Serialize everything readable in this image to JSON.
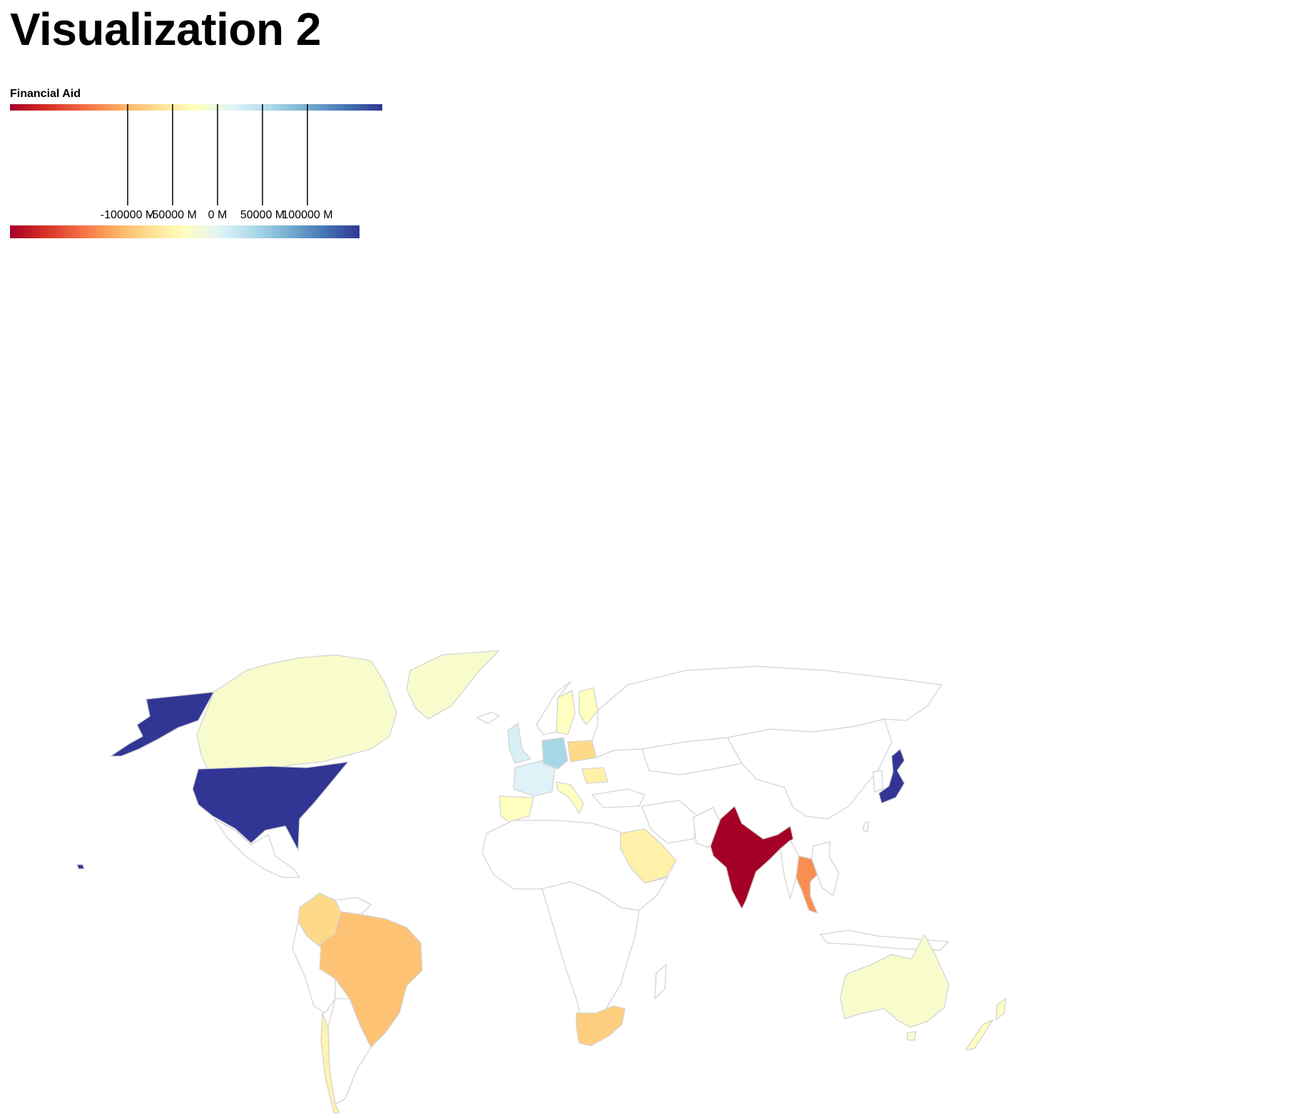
{
  "page": {
    "title": "Visualization 2"
  },
  "legend": {
    "title": "Financial Aid",
    "domain": [
      -130000,
      90000
    ],
    "ticks": [
      {
        "value": -100000,
        "label": "-100000 M"
      },
      {
        "value": -50000,
        "label": "-50000 M"
      },
      {
        "value": 0,
        "label": "0 M"
      },
      {
        "value": 50000,
        "label": "50000 M"
      },
      {
        "value": 100000,
        "label": "100000 M"
      }
    ],
    "gradient_stops": [
      "#a50026",
      "#d73027",
      "#f46d43",
      "#fdae61",
      "#fee090",
      "#ffffbf",
      "#e0f3f8",
      "#abd9e9",
      "#74add1",
      "#4575b4",
      "#313695"
    ]
  },
  "chart_data": {
    "type": "choropleth",
    "title": "",
    "value_label": "Financial Aid",
    "unit": "M",
    "no_data_color": "#ffffff",
    "border_color": "#d4d4d4",
    "regions": [
      {
        "id": "united-states",
        "value": 100000
      },
      {
        "id": "alaska",
        "value": 100000
      },
      {
        "id": "japan",
        "value": 100000
      },
      {
        "id": "germany",
        "value": 25000
      },
      {
        "id": "united-kingdom",
        "value": 5000
      },
      {
        "id": "france",
        "value": 3000
      },
      {
        "id": "canada",
        "value": -15000
      },
      {
        "id": "greenland",
        "value": -15000
      },
      {
        "id": "australia",
        "value": -15000
      },
      {
        "id": "new-zealand",
        "value": -18000
      },
      {
        "id": "sweden",
        "value": -20000
      },
      {
        "id": "finland",
        "value": -20000
      },
      {
        "id": "spain",
        "value": -20000
      },
      {
        "id": "italy",
        "value": -20000
      },
      {
        "id": "chile",
        "value": -28000
      },
      {
        "id": "saudi-arabia",
        "value": -30000
      },
      {
        "id": "romania",
        "value": -30000
      },
      {
        "id": "colombia",
        "value": -45000
      },
      {
        "id": "poland",
        "value": -45000
      },
      {
        "id": "south-africa",
        "value": -50000
      },
      {
        "id": "brazil",
        "value": -55000
      },
      {
        "id": "thailand",
        "value": -75000
      },
      {
        "id": "india",
        "value": -130000
      }
    ]
  }
}
